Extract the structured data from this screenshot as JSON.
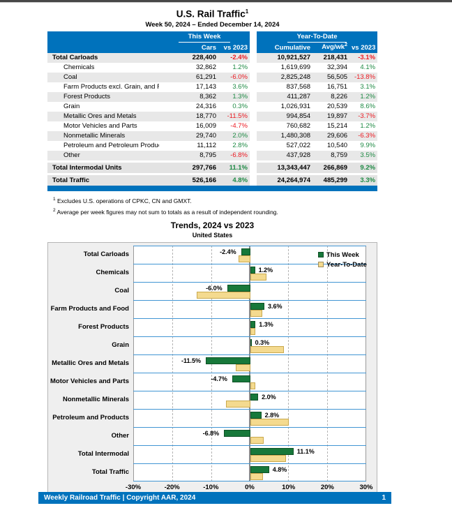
{
  "page": {
    "title": "U.S. Rail Traffic",
    "title_sup": "1",
    "subtitle": "Week 50, 2024 – Ended December 14, 2024"
  },
  "colors": {
    "brand_blue": "#0072BC",
    "positive_green": "#1E8A44",
    "negative_red": "#EC1B23",
    "bar_green": "#17783A",
    "bar_tan": "#F4DA8F",
    "row_stripe": "#E8E8E8",
    "row_separator_blue": "#4195D3"
  },
  "table": {
    "group_this_week": "This Week",
    "group_ytd": "Year-To-Date",
    "col_cars": "Cars",
    "col_wk_vs": "vs 2023",
    "col_cumulative": "Cumulative",
    "col_avgwk": "Avg/wk",
    "col_avgwk_sup": "2",
    "col_ytd_vs": "vs 2023",
    "rows": [
      {
        "label": "Total Carloads",
        "bold": true,
        "cars": "228,400",
        "wk_vs": "-2.4%",
        "cumulative": "10,921,527",
        "avgwk": "218,431",
        "ytd_vs": "-3.1%"
      },
      {
        "label": "Chemicals",
        "cars": "32,862",
        "wk_vs": "1.2%",
        "cumulative": "1,619,699",
        "avgwk": "32,394",
        "ytd_vs": "4.1%"
      },
      {
        "label": "Coal",
        "cars": "61,291",
        "wk_vs": "-6.0%",
        "cumulative": "2,825,248",
        "avgwk": "56,505",
        "ytd_vs": "-13.8%"
      },
      {
        "label": "Farm Products excl. Grain, and Food",
        "cars": "17,143",
        "wk_vs": "3.6%",
        "cumulative": "837,568",
        "avgwk": "16,751",
        "ytd_vs": "3.1%"
      },
      {
        "label": "Forest Products",
        "cars": "8,362",
        "wk_vs": "1.3%",
        "cumulative": "411,287",
        "avgwk": "8,226",
        "ytd_vs": "1.2%"
      },
      {
        "label": "Grain",
        "cars": "24,316",
        "wk_vs": "0.3%",
        "cumulative": "1,026,931",
        "avgwk": "20,539",
        "ytd_vs": "8.6%"
      },
      {
        "label": "Metallic Ores and Metals",
        "cars": "18,770",
        "wk_vs": "-11.5%",
        "cumulative": "994,854",
        "avgwk": "19,897",
        "ytd_vs": "-3.7%"
      },
      {
        "label": "Motor Vehicles and Parts",
        "cars": "16,009",
        "wk_vs": "-4.7%",
        "cumulative": "760,682",
        "avgwk": "15,214",
        "ytd_vs": "1.2%"
      },
      {
        "label": "Nonmetallic Minerals",
        "cars": "29,740",
        "wk_vs": "2.0%",
        "cumulative": "1,480,308",
        "avgwk": "29,606",
        "ytd_vs": "-6.3%"
      },
      {
        "label": "Petroleum and Petroleum Products",
        "cars": "11,112",
        "wk_vs": "2.8%",
        "cumulative": "527,022",
        "avgwk": "10,540",
        "ytd_vs": "9.9%"
      },
      {
        "label": "Other",
        "cars": "8,795",
        "wk_vs": "-6.8%",
        "cumulative": "437,928",
        "avgwk": "8,759",
        "ytd_vs": "3.5%"
      }
    ],
    "totals": [
      {
        "label": "Total Intermodal Units",
        "cars": "297,766",
        "wk_vs": "11.1%",
        "cumulative": "13,343,447",
        "avgwk": "266,869",
        "ytd_vs": "9.2%"
      },
      {
        "label": "Total Traffic",
        "cars": "526,166",
        "wk_vs": "4.8%",
        "cumulative": "24,264,974",
        "avgwk": "485,299",
        "ytd_vs": "3.3%"
      }
    ]
  },
  "footnotes": [
    {
      "sup": "1",
      "text": "Excludes U.S. operations of CPKC, CN and GMXT."
    },
    {
      "sup": "2",
      "text": "Average per week figures may not sum to totals as a result of independent rounding."
    }
  ],
  "chart_data": {
    "type": "bar",
    "orientation": "horizontal",
    "title": "Trends, 2024 vs 2023",
    "subtitle": "United States",
    "categories": [
      "Total Carloads",
      "Chemicals",
      "Coal",
      "Farm Products and Food",
      "Forest Products",
      "Grain",
      "Metallic Ores and Metals",
      "Motor Vehicles and Parts",
      "Nonmetallic Minerals",
      "Petroleum and Products",
      "Other",
      "Total Intermodal",
      "Total Traffic"
    ],
    "series": [
      {
        "name": "This Week",
        "color": "#17783A",
        "values": [
          -2.4,
          1.2,
          -6.0,
          3.6,
          1.3,
          0.3,
          -11.5,
          -4.7,
          2.0,
          2.8,
          -6.8,
          11.1,
          4.8
        ]
      },
      {
        "name": "Year-To-Date",
        "color": "#F4DA8F",
        "values": [
          -3.1,
          4.1,
          -13.8,
          3.1,
          1.2,
          8.6,
          -3.7,
          1.2,
          -6.3,
          9.9,
          3.5,
          9.2,
          3.3
        ]
      }
    ],
    "bar_labels": [
      "-2.4%",
      "1.2%",
      "-6.0%",
      "3.6%",
      "1.3%",
      "0.3%",
      "-11.5%",
      "-4.7%",
      "2.0%",
      "2.8%",
      "-6.8%",
      "11.1%",
      "4.8%"
    ],
    "xlim": [
      -30,
      30
    ],
    "xticks": [
      "-30%",
      "-20%",
      "-10%",
      "0%",
      "10%",
      "20%",
      "30%"
    ],
    "legend_position": "top-right",
    "grid": true
  },
  "footer": {
    "left": "Weekly Railroad Traffic | Copyright AAR, 2024",
    "page_number": "1"
  }
}
